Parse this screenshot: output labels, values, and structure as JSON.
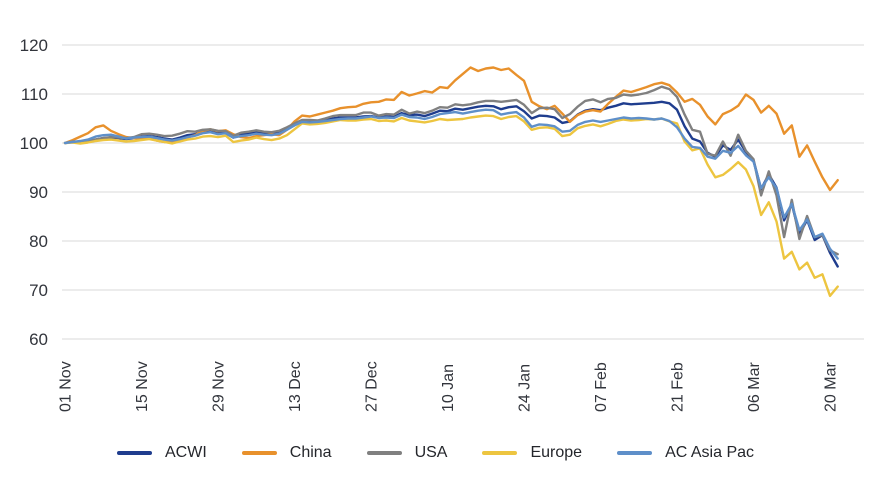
{
  "chart_data": {
    "type": "line",
    "title": "",
    "xlabel": "",
    "ylabel": "",
    "baseline_value": 100,
    "grid": true,
    "legend_position": "bottom",
    "y_ticks": [
      60,
      70,
      80,
      90,
      100,
      110,
      120
    ],
    "ylim": [
      57,
      124
    ],
    "x_tick_every": 10,
    "x_tick_labels": [
      "01 Nov",
      "15 Nov",
      "29 Nov",
      "13 Dec",
      "27 Dec",
      "10 Jan",
      "24 Jan",
      "07 Feb",
      "21 Feb",
      "06 Mar",
      "20 Mar"
    ],
    "x_dates": [
      "01 Nov",
      "04 Nov",
      "05 Nov",
      "06 Nov",
      "07 Nov",
      "08 Nov",
      "11 Nov",
      "12 Nov",
      "13 Nov",
      "14 Nov",
      "15 Nov",
      "18 Nov",
      "19 Nov",
      "20 Nov",
      "21 Nov",
      "22 Nov",
      "25 Nov",
      "26 Nov",
      "27 Nov",
      "28 Nov",
      "29 Nov",
      "02 Dec",
      "03 Dec",
      "04 Dec",
      "05 Dec",
      "06 Dec",
      "09 Dec",
      "10 Dec",
      "11 Dec",
      "12 Dec",
      "13 Dec",
      "16 Dec",
      "17 Dec",
      "18 Dec",
      "19 Dec",
      "20 Dec",
      "23 Dec",
      "24 Dec",
      "25 Dec",
      "26 Dec",
      "27 Dec",
      "30 Dec",
      "31 Dec",
      "01 Jan",
      "02 Jan",
      "03 Jan",
      "06 Jan",
      "07 Jan",
      "08 Jan",
      "09 Jan",
      "10 Jan",
      "13 Jan",
      "14 Jan",
      "15 Jan",
      "16 Jan",
      "17 Jan",
      "20 Jan",
      "21 Jan",
      "22 Jan",
      "23 Jan",
      "24 Jan",
      "27 Jan",
      "28 Jan",
      "29 Jan",
      "30 Jan",
      "31 Jan",
      "03 Feb",
      "04 Feb",
      "05 Feb",
      "06 Feb",
      "07 Feb",
      "10 Feb",
      "11 Feb",
      "12 Feb",
      "13 Feb",
      "14 Feb",
      "17 Feb",
      "18 Feb",
      "19 Feb",
      "20 Feb",
      "21 Feb",
      "24 Feb",
      "25 Feb",
      "26 Feb",
      "27 Feb",
      "28 Feb",
      "02 Mar",
      "03 Mar",
      "04 Mar",
      "05 Mar",
      "06 Mar",
      "09 Mar",
      "10 Mar",
      "11 Mar",
      "12 Mar",
      "13 Mar",
      "16 Mar",
      "17 Mar",
      "18 Mar",
      "19 Mar",
      "20 Mar",
      "23 Mar"
    ],
    "series": [
      {
        "name": "ACWI",
        "color": "#1F3D8E",
        "values": [
          100,
          100.2,
          100.1,
          100.3,
          100.7,
          101.0,
          101.1,
          101.0,
          100.8,
          101.0,
          101.3,
          101.4,
          101.2,
          100.9,
          100.7,
          101.1,
          101.6,
          101.8,
          102.2,
          102.3,
          102.1,
          102.0,
          101.1,
          101.7,
          102.0,
          102.3,
          102.1,
          102.0,
          102.3,
          103.0,
          103.7,
          104.4,
          104.3,
          104.4,
          104.7,
          105.0,
          105.2,
          105.2,
          105.2,
          105.4,
          105.5,
          105.2,
          105.4,
          105.3,
          106.1,
          105.7,
          105.8,
          105.5,
          106.0,
          106.6,
          106.5,
          107.0,
          106.8,
          107.1,
          107.4,
          107.6,
          107.5,
          106.9,
          107.3,
          107.5,
          106.5,
          105.0,
          105.6,
          105.5,
          105.2,
          104.1,
          104.4,
          105.8,
          106.6,
          106.9,
          106.7,
          107.2,
          107.6,
          108.1,
          107.9,
          108.0,
          108.1,
          108.2,
          108.4,
          108.1,
          106.8,
          103.4,
          100.9,
          100.3,
          98.0,
          97.2,
          99.5,
          98.6,
          100.7,
          98.2,
          96.5,
          90.6,
          93.6,
          90.9,
          84.2,
          87.6,
          81.3,
          84.3,
          80.2,
          81.2,
          77.6,
          74.8
        ]
      },
      {
        "name": "China",
        "color": "#E8912C",
        "values": [
          100,
          100.6,
          101.3,
          102.0,
          103.2,
          103.6,
          102.5,
          101.8,
          101.2,
          101.0,
          100.8,
          101.0,
          100.5,
          100.2,
          100.3,
          100.7,
          101.1,
          101.6,
          102.5,
          102.8,
          102.4,
          102.6,
          101.8,
          101.2,
          101.0,
          101.4,
          101.6,
          101.8,
          101.6,
          102.7,
          104.4,
          105.6,
          105.4,
          105.8,
          106.2,
          106.6,
          107.1,
          107.3,
          107.4,
          108.0,
          108.3,
          108.4,
          108.9,
          108.8,
          110.4,
          109.7,
          110.1,
          110.6,
          110.3,
          111.4,
          111.2,
          112.8,
          114.1,
          115.4,
          114.7,
          115.2,
          115.4,
          114.9,
          115.2,
          113.9,
          112.7,
          108.4,
          107.5,
          106.9,
          107.6,
          106.0,
          104.3,
          105.7,
          106.4,
          106.7,
          106.4,
          108.0,
          109.4,
          110.7,
          110.4,
          110.9,
          111.4,
          112.0,
          112.3,
          111.8,
          110.3,
          108.4,
          109.0,
          107.8,
          105.4,
          103.8,
          105.9,
          106.6,
          107.6,
          109.9,
          108.8,
          106.2,
          107.6,
          106.0,
          101.9,
          103.6,
          97.2,
          99.5,
          96.2,
          93.0,
          90.4,
          92.4
        ]
      },
      {
        "name": "USA",
        "color": "#808080",
        "values": [
          100,
          100.3,
          100.2,
          100.4,
          100.7,
          101.0,
          101.2,
          101.1,
          101.0,
          101.2,
          101.8,
          101.9,
          101.7,
          101.4,
          101.5,
          101.9,
          102.4,
          102.3,
          102.7,
          102.8,
          102.5,
          102.4,
          101.5,
          102.1,
          102.3,
          102.6,
          102.3,
          102.2,
          102.5,
          103.2,
          104.0,
          104.7,
          104.7,
          104.6,
          105.0,
          105.5,
          105.7,
          105.7,
          105.7,
          106.2,
          106.2,
          105.6,
          105.9,
          105.8,
          106.8,
          106.0,
          106.4,
          106.1,
          106.6,
          107.3,
          107.2,
          107.9,
          107.7,
          107.9,
          108.3,
          108.6,
          108.6,
          108.4,
          108.6,
          108.8,
          107.8,
          106.1,
          107.1,
          107.2,
          106.9,
          105.1,
          105.9,
          107.4,
          108.6,
          108.9,
          108.3,
          109.0,
          109.2,
          109.9,
          109.7,
          109.9,
          110.2,
          110.8,
          111.5,
          111.0,
          109.4,
          105.8,
          102.7,
          102.3,
          97.8,
          97.4,
          100.3,
          97.4,
          101.7,
          98.4,
          96.7,
          89.3,
          94.2,
          89.3,
          80.8,
          88.4,
          80.4,
          85.1,
          80.8,
          81.2,
          78.1,
          77.3
        ]
      },
      {
        "name": "Europe",
        "color": "#EDC540",
        "values": [
          100,
          100.1,
          99.9,
          100.1,
          100.4,
          100.6,
          100.7,
          100.5,
          100.3,
          100.4,
          100.6,
          100.8,
          100.5,
          100.2,
          99.9,
          100.3,
          100.7,
          100.9,
          101.3,
          101.4,
          101.2,
          101.5,
          100.2,
          100.5,
          100.7,
          101.1,
          100.8,
          100.6,
          100.9,
          101.6,
          102.8,
          104.0,
          103.8,
          103.9,
          104.1,
          104.4,
          104.7,
          104.6,
          104.6,
          104.8,
          104.9,
          104.5,
          104.6,
          104.4,
          105.1,
          104.6,
          104.4,
          104.2,
          104.5,
          104.9,
          104.7,
          104.8,
          104.9,
          105.2,
          105.4,
          105.6,
          105.5,
          104.9,
          105.3,
          105.5,
          104.4,
          102.7,
          103.1,
          103.2,
          102.9,
          101.4,
          101.7,
          103.0,
          103.5,
          103.8,
          103.4,
          103.9,
          104.5,
          104.8,
          104.6,
          104.7,
          104.9,
          104.8,
          105.0,
          104.4,
          104.0,
          100.3,
          98.5,
          98.9,
          95.6,
          93.0,
          93.5,
          94.7,
          96.1,
          94.6,
          91.2,
          85.3,
          87.9,
          84.0,
          76.4,
          77.8,
          74.2,
          75.6,
          72.5,
          73.2,
          68.8,
          70.7
        ]
      },
      {
        "name": "AC Asia Pac",
        "color": "#5E8FC9",
        "values": [
          100,
          100.2,
          100.4,
          100.7,
          101.3,
          101.6,
          101.7,
          101.3,
          100.9,
          101.1,
          101.2,
          101.3,
          101.0,
          100.7,
          100.5,
          100.8,
          101.2,
          101.5,
          102.0,
          102.2,
          101.8,
          102.0,
          101.1,
          101.4,
          101.6,
          101.9,
          101.7,
          101.6,
          101.9,
          102.7,
          103.6,
          104.3,
          104.2,
          104.3,
          104.5,
          104.7,
          104.9,
          105.0,
          105.0,
          105.2,
          105.4,
          105.1,
          105.2,
          105.1,
          105.8,
          105.3,
          105.2,
          104.9,
          105.3,
          105.9,
          106.1,
          106.3,
          106.0,
          106.3,
          106.6,
          106.8,
          106.7,
          105.8,
          106.1,
          106.3,
          105.2,
          103.3,
          103.8,
          103.7,
          103.4,
          102.3,
          102.5,
          103.7,
          104.3,
          104.6,
          104.3,
          104.6,
          104.9,
          105.2,
          105.0,
          105.1,
          105.0,
          104.8,
          105.0,
          104.5,
          103.2,
          100.9,
          99.2,
          99.0,
          97.2,
          96.8,
          98.4,
          98.0,
          99.4,
          97.5,
          96.2,
          90.8,
          93.0,
          90.8,
          84.8,
          87.6,
          82.2,
          84.4,
          80.8,
          81.5,
          78.4,
          76.4
        ]
      }
    ]
  },
  "style": {
    "grid_color": "#D9D9D9",
    "tick_text_color": "#32353C",
    "legend_text_color": "#24262B",
    "background": "#FFFFFF"
  }
}
